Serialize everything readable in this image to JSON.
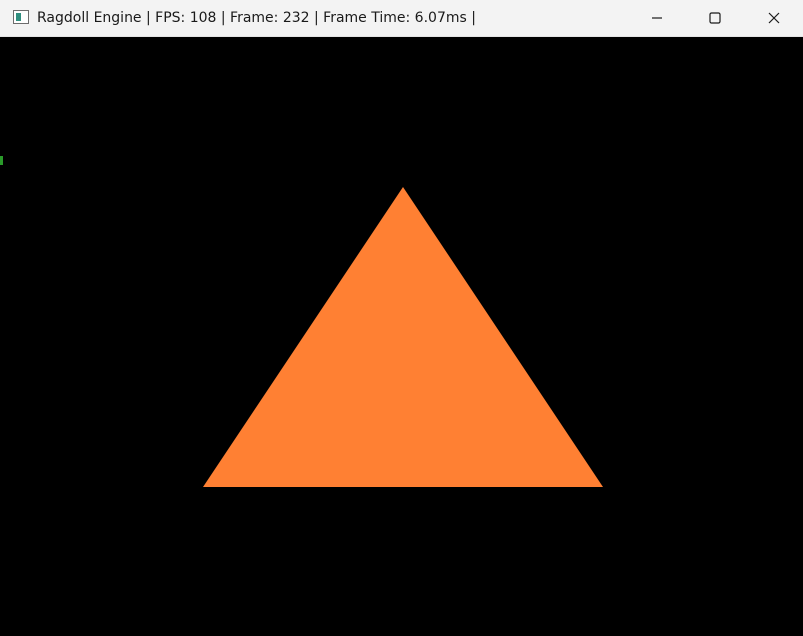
{
  "window": {
    "title": "Ragdoll Engine | FPS: 108 | Frame: 232 | Frame Time: 6.07ms |",
    "icon": "app-window-icon"
  },
  "controls": {
    "minimize_icon": "minimize-icon",
    "maximize_icon": "maximize-icon",
    "close_icon": "close-icon"
  },
  "scene": {
    "background_color": "#000000",
    "triangle_color": "#ff8033"
  }
}
